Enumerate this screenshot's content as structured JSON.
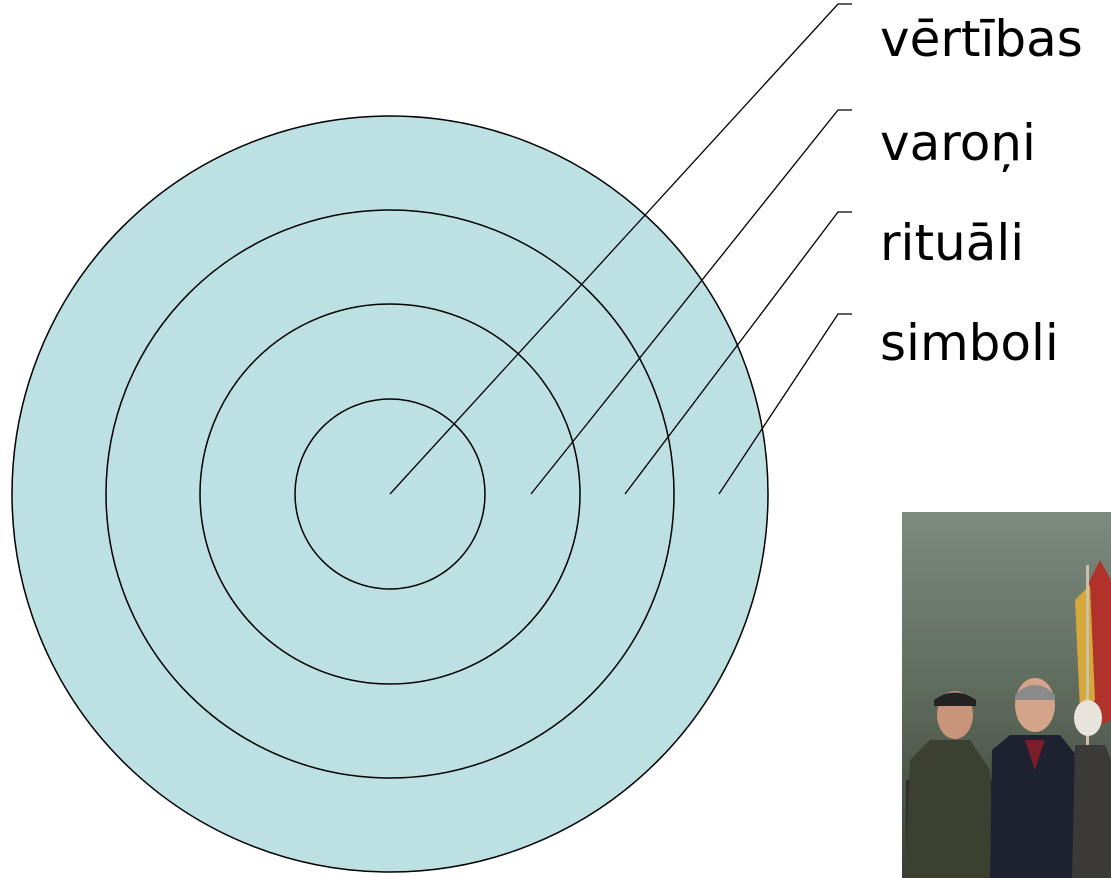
{
  "layers": [
    {
      "label": "vērtības"
    },
    {
      "label": "varoņi"
    },
    {
      "label": "rituāli"
    },
    {
      "label": "simboli"
    }
  ]
}
